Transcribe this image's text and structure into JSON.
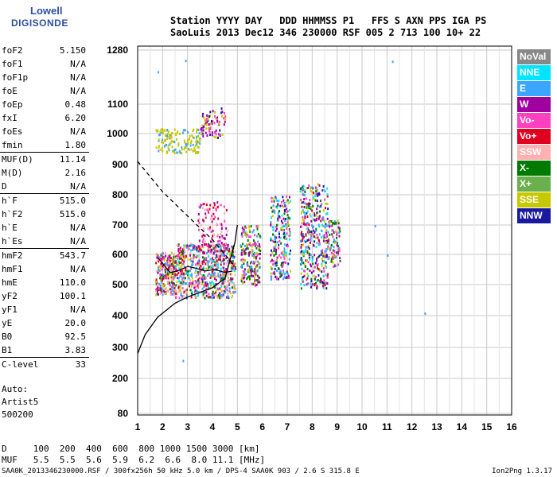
{
  "logo": {
    "line1": "Lowell",
    "line2": "DIGISONDE"
  },
  "header": {
    "line1": "Station YYYY DAY   DDD HHMMSS P1   FFS S AXN PPS IGA PS",
    "line2": "SaoLuis 2013 Dec12 346 230000 RSF 005 2 713 100 10+ 22"
  },
  "params": [
    [
      {
        "label": "foF2",
        "value": "5.150"
      },
      {
        "label": "foF1",
        "value": "N/A"
      },
      {
        "label": "foF1p",
        "value": "N/A"
      },
      {
        "label": "foE",
        "value": "N/A"
      },
      {
        "label": "foEp",
        "value": "0.48"
      },
      {
        "label": "fxI",
        "value": "6.20"
      },
      {
        "label": "foEs",
        "value": "N/A"
      },
      {
        "label": "fmin",
        "value": "1.80"
      }
    ],
    [
      {
        "label": "MUF(D)",
        "value": "11.14"
      },
      {
        "label": "M(D)",
        "value": "2.16"
      },
      {
        "label": "D",
        "value": "N/A"
      }
    ],
    [
      {
        "label": "h`F",
        "value": "515.0"
      },
      {
        "label": "h`F2",
        "value": "515.0"
      },
      {
        "label": "h`E",
        "value": "N/A"
      },
      {
        "label": "h`Es",
        "value": "N/A"
      }
    ],
    [
      {
        "label": "hmF2",
        "value": "543.7"
      },
      {
        "label": "hmF1",
        "value": "N/A"
      },
      {
        "label": "hmE",
        "value": "110.0"
      },
      {
        "label": "yF2",
        "value": "100.1"
      },
      {
        "label": "yF1",
        "value": "N/A"
      },
      {
        "label": "yE",
        "value": "20.0"
      },
      {
        "label": "B0",
        "value": "92.5"
      },
      {
        "label": "B1",
        "value": "3.83"
      }
    ],
    [
      {
        "label": "C-level",
        "value": "33"
      }
    ]
  ],
  "sidebar_note": [
    "Auto:",
    "Artist5",
    "500200"
  ],
  "legend": [
    {
      "label": "NoVal",
      "color": "#888888"
    },
    {
      "label": "NNE",
      "color": "#00e5ff"
    },
    {
      "label": "E",
      "color": "#3aa6ff"
    },
    {
      "label": "W",
      "color": "#a000a0"
    },
    {
      "label": "Vo-",
      "color": "#ff40c0"
    },
    {
      "label": "Vo+",
      "color": "#e00020"
    },
    {
      "label": "SSW",
      "color": "#ffb0b0"
    },
    {
      "label": "X-",
      "color": "#007a00"
    },
    {
      "label": "X+",
      "color": "#6ab04c"
    },
    {
      "label": "SSE",
      "color": "#c8c800"
    },
    {
      "label": "NNW",
      "color": "#1a1aa0"
    }
  ],
  "distance_table": {
    "d_label": "D",
    "d_values": "100  200  400  600  800 1000 1500 3000 [km]",
    "muf_label": "MUF",
    "muf_values": "5.5  5.5  5.6  5.9  6.2  6.6  8.0 11.1 [MHz]"
  },
  "footer": "SAA0K_2013346230000.RSF / 300fx256h 50 kHz 5.0 km / DPS-4 SAA0K 903 / 2.6 S 315.8 E",
  "footer_version": "Ion2Png 1.3.17",
  "chart_data": {
    "type": "scatter",
    "x": {
      "min": 1,
      "max": 16,
      "ticks": [
        1,
        2,
        3,
        4,
        5,
        6,
        7,
        8,
        9,
        10,
        11,
        12,
        13,
        14,
        15,
        16
      ]
    },
    "y": {
      "ticks": [
        80,
        200,
        300,
        400,
        500,
        600,
        700,
        800,
        900,
        1000,
        1100,
        1280
      ],
      "label_unit": "km"
    },
    "grid": true,
    "clusters": [
      {
        "xmin": 1.7,
        "xmax": 2.5,
        "ymin": 470,
        "ymax": 610,
        "n": 260,
        "colors": [
          "#a000a0",
          "#ff40c0",
          "#e00020",
          "#c8c800",
          "#3aa6ff",
          "#007a00",
          "#ffb0b0"
        ]
      },
      {
        "xmin": 2.5,
        "xmax": 4.9,
        "ymin": 460,
        "ymax": 640,
        "n": 700,
        "colors": [
          "#a000a0",
          "#ff40c0",
          "#e00020",
          "#c8c800",
          "#3aa6ff",
          "#007a00",
          "#ffb0b0",
          "#00e5ff"
        ]
      },
      {
        "xmin": 3.4,
        "xmax": 4.6,
        "ymin": 600,
        "ymax": 780,
        "n": 120,
        "colors": [
          "#a000a0",
          "#ff40c0",
          "#e00020",
          "#ffb0b0"
        ]
      },
      {
        "xmin": 5.1,
        "xmax": 5.9,
        "ymin": 500,
        "ymax": 700,
        "n": 200,
        "colors": [
          "#c8c800",
          "#ff40c0",
          "#a000a0",
          "#3aa6ff",
          "#007a00"
        ]
      },
      {
        "xmin": 6.3,
        "xmax": 7.1,
        "ymin": 520,
        "ymax": 800,
        "n": 230,
        "colors": [
          "#c8c800",
          "#ff40c0",
          "#a000a0",
          "#3aa6ff",
          "#007a00",
          "#00e5ff",
          "#1a1aa0"
        ]
      },
      {
        "xmin": 7.5,
        "xmax": 8.6,
        "ymin": 490,
        "ymax": 840,
        "n": 380,
        "colors": [
          "#c8c800",
          "#ff40c0",
          "#a000a0",
          "#3aa6ff",
          "#007a00",
          "#00e5ff",
          "#1a1aa0",
          "#e00020"
        ]
      },
      {
        "xmin": 8.6,
        "xmax": 9.1,
        "ymin": 560,
        "ymax": 720,
        "n": 90,
        "colors": [
          "#c8c800",
          "#ff40c0",
          "#a000a0",
          "#3aa6ff",
          "#007a00"
        ]
      },
      {
        "xmin": 1.7,
        "xmax": 3.5,
        "ymin": 940,
        "ymax": 1020,
        "n": 150,
        "colors": [
          "#c8c800",
          "#c8c800",
          "#c8c800",
          "#3aa6ff"
        ]
      },
      {
        "xmin": 3.5,
        "xmax": 4.5,
        "ymin": 990,
        "ymax": 1090,
        "n": 80,
        "colors": [
          "#c8c800",
          "#a000a0",
          "#1a1aa0",
          "#ff40c0"
        ]
      }
    ],
    "scatter_points": [
      [
        11.2,
        1245
      ],
      [
        12.5,
        410
      ],
      [
        11.0,
        600
      ],
      [
        10.5,
        700
      ],
      [
        2.8,
        260
      ],
      [
        1.8,
        1210
      ],
      [
        2.9,
        1248
      ]
    ],
    "profile_solid": [
      [
        1,
        280
      ],
      [
        1.3,
        340
      ],
      [
        1.8,
        395
      ],
      [
        2.5,
        440
      ],
      [
        3.0,
        460
      ],
      [
        3.5,
        475
      ],
      [
        4.0,
        490
      ],
      [
        4.5,
        520
      ],
      [
        4.7,
        580
      ],
      [
        4.9,
        640
      ],
      [
        5.0,
        700
      ]
    ],
    "profile_dashed": [
      [
        1,
        910
      ],
      [
        1.5,
        860
      ],
      [
        2.0,
        810
      ],
      [
        2.5,
        770
      ],
      [
        3.0,
        730
      ],
      [
        3.5,
        690
      ],
      [
        4.0,
        650
      ],
      [
        4.5,
        600
      ],
      [
        4.9,
        560
      ]
    ],
    "trace": [
      [
        1.8,
        590
      ],
      [
        2.1,
        560
      ],
      [
        2.3,
        540
      ],
      [
        2.6,
        545
      ],
      [
        3.0,
        560
      ],
      [
        3.3,
        555
      ],
      [
        3.7,
        545
      ],
      [
        4.1,
        550
      ],
      [
        4.5,
        540
      ],
      [
        4.8,
        545
      ]
    ]
  }
}
